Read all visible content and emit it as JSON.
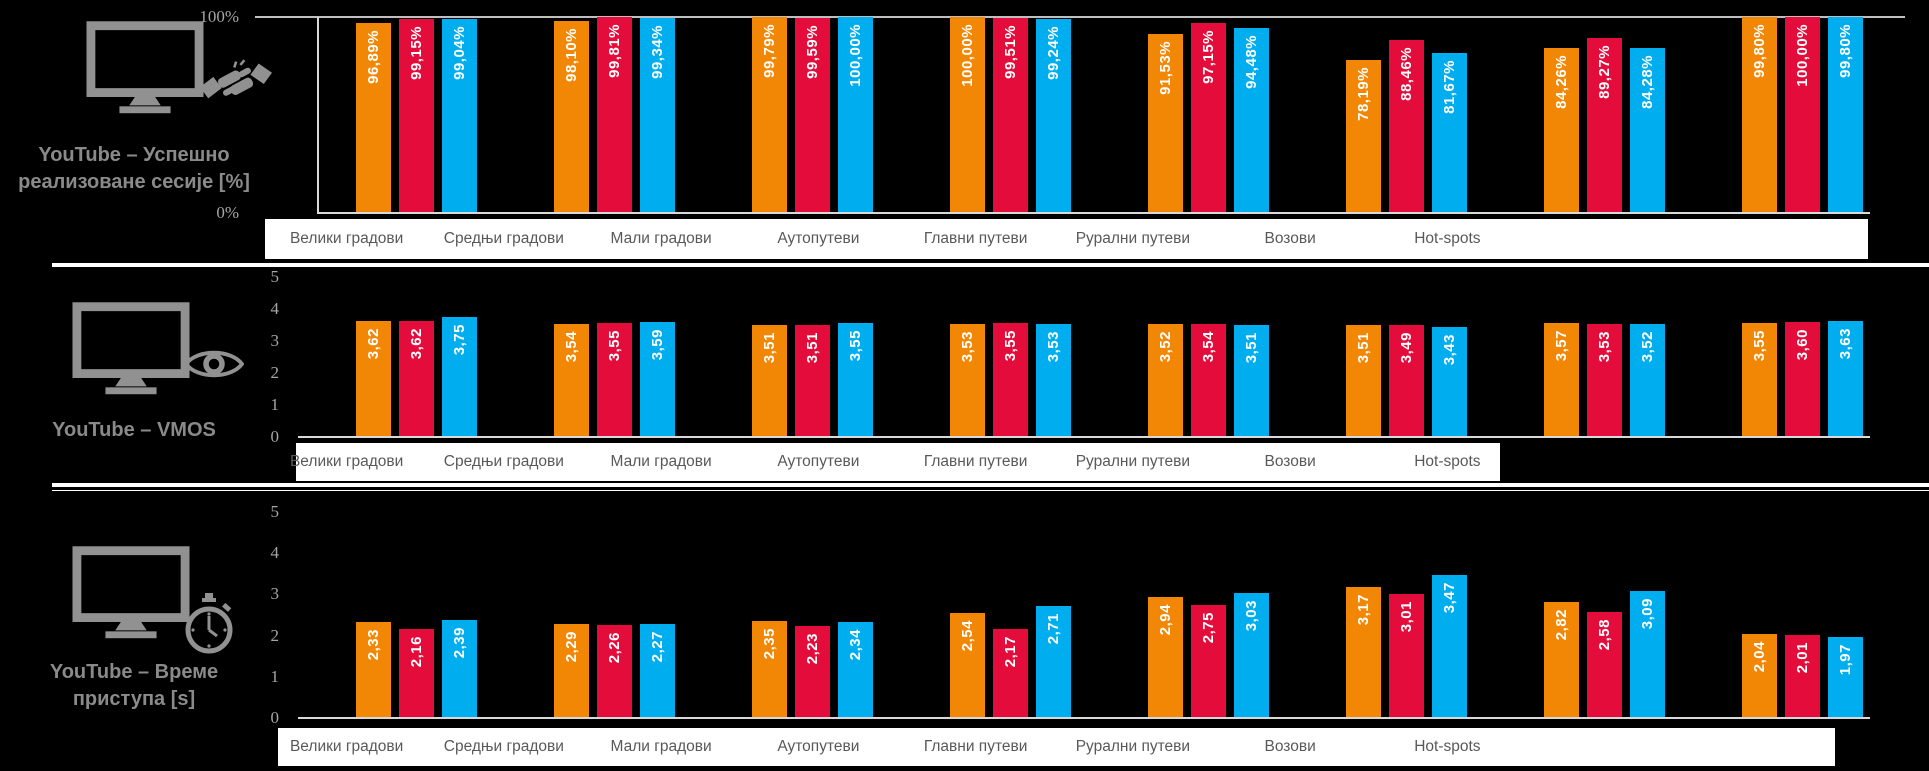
{
  "colors": {
    "background": "#000000",
    "strip_background": "#FFFFFF",
    "separator": "#FFFFFF",
    "baseline": "#D9D9D9",
    "gridline": "#BFBFBF",
    "icon_gray": "#919191",
    "title_gray": "#8A8A8A",
    "axis_text": "#A6A6A6",
    "category_text": "#595959",
    "bar_orange": "#F28705",
    "bar_red": "#E40C3B",
    "bar_blue": "#00AEEF"
  },
  "chart_data": [
    {
      "type": "bar",
      "title": "YouTube – Успешно реализоване сесије [%]",
      "title_lines": [
        "YouTube – Успешно",
        "реализоване сесије [%]"
      ],
      "icons": [
        "monitor-icon",
        "handshake-icon"
      ],
      "ylim": [
        0,
        100
      ],
      "yticks": [
        {
          "label": "100%",
          "value": 100
        },
        {
          "label": "0%",
          "value": 0
        }
      ],
      "legend": "none",
      "grid": "top line only",
      "categories": [
        "Велики градови",
        "Средњи градови",
        "Мали градови",
        "Аутопутеви",
        "Главни путеви",
        "Рурални путеви",
        "Возови",
        "Hot-spots"
      ],
      "series": [
        {
          "name": "orange",
          "color": "#F28705",
          "values": [
            96.89,
            98.1,
            99.79,
            100.0,
            91.53,
            78.19,
            84.26,
            99.8
          ],
          "labels": [
            "96,89%",
            "98,10%",
            "99,79%",
            "100,00%",
            "91,53%",
            "78,19%",
            "84,26%",
            "99,80%"
          ]
        },
        {
          "name": "red",
          "color": "#E40C3B",
          "values": [
            99.15,
            99.81,
            99.59,
            99.51,
            97.15,
            88.46,
            89.27,
            100.0
          ],
          "labels": [
            "99,15%",
            "99,81%",
            "99,59%",
            "99,51%",
            "97,15%",
            "88,46%",
            "89,27%",
            "100,00%"
          ]
        },
        {
          "name": "blue",
          "color": "#00AEEF",
          "values": [
            99.04,
            99.34,
            100.0,
            99.24,
            94.48,
            81.67,
            84.28,
            99.8
          ],
          "labels": [
            "99,04%",
            "99,34%",
            "100,00%",
            "99,24%",
            "94,48%",
            "81,67%",
            "84,28%",
            "99,80%"
          ]
        }
      ]
    },
    {
      "type": "bar",
      "title": "YouTube – VMOS",
      "title_lines": [
        "YouTube – VMOS"
      ],
      "icons": [
        "monitor-icon",
        "eye-icon"
      ],
      "ylim": [
        0,
        5
      ],
      "yticks": [
        {
          "label": "5",
          "value": 5
        },
        {
          "label": "4",
          "value": 4
        },
        {
          "label": "3",
          "value": 3
        },
        {
          "label": "2",
          "value": 2
        },
        {
          "label": "1",
          "value": 1
        },
        {
          "label": "0",
          "value": 0
        }
      ],
      "legend": "none",
      "grid": "off",
      "categories": [
        "Велики градови",
        "Средњи градови",
        "Мали градови",
        "Аутопутеви",
        "Главни путеви",
        "Рурални путеви",
        "Возови",
        "Hot-spots"
      ],
      "series": [
        {
          "name": "orange",
          "color": "#F28705",
          "values": [
            3.62,
            3.54,
            3.51,
            3.53,
            3.52,
            3.51,
            3.57,
            3.55
          ],
          "labels": [
            "3,62",
            "3,54",
            "3,51",
            "3,53",
            "3,52",
            "3,51",
            "3,57",
            "3,55"
          ]
        },
        {
          "name": "red",
          "color": "#E40C3B",
          "values": [
            3.62,
            3.55,
            3.51,
            3.55,
            3.54,
            3.49,
            3.53,
            3.6
          ],
          "labels": [
            "3,62",
            "3,55",
            "3,51",
            "3,55",
            "3,54",
            "3,49",
            "3,53",
            "3,60"
          ]
        },
        {
          "name": "blue",
          "color": "#00AEEF",
          "values": [
            3.75,
            3.59,
            3.55,
            3.53,
            3.51,
            3.43,
            3.52,
            3.63
          ],
          "labels": [
            "3,75",
            "3,59",
            "3,55",
            "3,53",
            "3,51",
            "3,43",
            "3,52",
            "3,63"
          ]
        }
      ]
    },
    {
      "type": "bar",
      "title": "YouTube – Време приступа [s]",
      "title_lines": [
        "YouTube – Време",
        "приступа [s]"
      ],
      "icons": [
        "monitor-icon",
        "stopwatch-icon"
      ],
      "ylim": [
        0,
        5
      ],
      "yticks": [
        {
          "label": "5",
          "value": 5
        },
        {
          "label": "4",
          "value": 4
        },
        {
          "label": "3",
          "value": 3
        },
        {
          "label": "2",
          "value": 2
        },
        {
          "label": "1",
          "value": 1
        },
        {
          "label": "0",
          "value": 0
        }
      ],
      "legend": "none",
      "grid": "off",
      "categories": [
        "Велики градови",
        "Средњи градови",
        "Мали градови",
        "Аутопутеви",
        "Главни путеви",
        "Рурални путеви",
        "Возови",
        "Hot-spots"
      ],
      "series": [
        {
          "name": "orange",
          "color": "#F28705",
          "values": [
            2.33,
            2.29,
            2.35,
            2.54,
            2.94,
            3.17,
            2.82,
            2.04
          ],
          "labels": [
            "2,33",
            "2,29",
            "2,35",
            "2,54",
            "2,94",
            "3,17",
            "2,82",
            "2,04"
          ]
        },
        {
          "name": "red",
          "color": "#E40C3B",
          "values": [
            2.16,
            2.26,
            2.23,
            2.17,
            2.75,
            3.01,
            2.58,
            2.01
          ],
          "labels": [
            "2,16",
            "2,26",
            "2,23",
            "2,17",
            "2,75",
            "3,01",
            "2,58",
            "2,01"
          ]
        },
        {
          "name": "blue",
          "color": "#00AEEF",
          "values": [
            2.39,
            2.27,
            2.34,
            2.71,
            3.03,
            3.47,
            3.09,
            1.97
          ],
          "labels": [
            "2,39",
            "2,27",
            "2,34",
            "2,71",
            "3,03",
            "3,47",
            "3,09",
            "1,97"
          ]
        }
      ]
    }
  ]
}
